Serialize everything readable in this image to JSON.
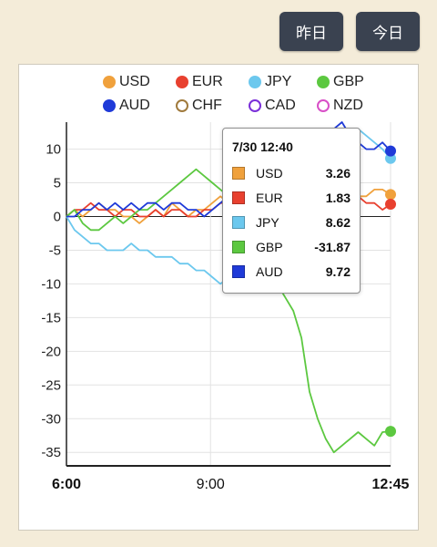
{
  "header": {
    "yesterday_label": "昨日",
    "today_label": "今日"
  },
  "tooltip": {
    "title": "7/30 12:40",
    "rows": [
      {
        "name": "USD",
        "value": "3.26",
        "color": "#f0a13c"
      },
      {
        "name": "EUR",
        "value": "1.83",
        "color": "#e8402f"
      },
      {
        "name": "JPY",
        "value": "8.62",
        "color": "#6cc8ee"
      },
      {
        "name": "GBP",
        "value": "-31.87",
        "color": "#5cc840"
      },
      {
        "name": "AUD",
        "value": "9.72",
        "color": "#1f3ad8"
      }
    ]
  },
  "chart_data": {
    "type": "line",
    "x_ticks": [
      "6:00",
      "9:00",
      "12:45"
    ],
    "x_range": [
      "6:00",
      "12:45"
    ],
    "ylim": [
      -37,
      14
    ],
    "y_ticks": [
      10,
      5,
      0,
      -5,
      -10,
      -15,
      -20,
      -25,
      -30,
      -35
    ],
    "grid": true,
    "legend_position": "top",
    "series": [
      {
        "name": "USD",
        "color": "#f0a13c",
        "filled": true,
        "last": 3.26,
        "values": [
          0,
          1,
          0,
          1,
          2,
          1,
          1,
          0,
          0,
          -1,
          0,
          1,
          0,
          2,
          1,
          0,
          1,
          1,
          2,
          3,
          2,
          3,
          2,
          3,
          4,
          3,
          3,
          4,
          4,
          3,
          2,
          3,
          4,
          3,
          3,
          4,
          3,
          3,
          4,
          4,
          3.26
        ]
      },
      {
        "name": "EUR",
        "color": "#e8402f",
        "filled": true,
        "last": 1.83,
        "values": [
          0,
          1,
          1,
          2,
          1,
          1,
          0,
          1,
          1,
          0,
          0,
          1,
          0,
          1,
          1,
          0,
          0,
          1,
          1,
          2,
          2,
          3,
          2,
          2,
          1,
          2,
          2,
          1,
          1,
          2,
          1,
          2,
          2,
          3,
          2,
          2,
          3,
          2,
          2,
          1,
          1.83
        ]
      },
      {
        "name": "JPY",
        "color": "#6cc8ee",
        "filled": true,
        "last": 8.62,
        "values": [
          0,
          -2,
          -3,
          -4,
          -4,
          -5,
          -5,
          -5,
          -4,
          -5,
          -5,
          -6,
          -6,
          -6,
          -7,
          -7,
          -8,
          -8,
          -9,
          -10,
          -9,
          -10,
          -10,
          -11,
          -11,
          -11,
          -10,
          -11,
          -10,
          -7,
          -4,
          -1,
          3,
          6,
          10,
          12,
          13,
          12,
          11,
          10,
          8.62
        ]
      },
      {
        "name": "GBP",
        "color": "#5cc840",
        "filled": true,
        "last": -31.87,
        "values": [
          0,
          1,
          -1,
          -2,
          -2,
          -1,
          0,
          -1,
          0,
          1,
          1,
          2,
          3,
          4,
          5,
          6,
          7,
          6,
          5,
          4,
          3,
          2,
          1,
          0,
          -3,
          -6,
          -10,
          -12,
          -14,
          -18,
          -26,
          -30,
          -33,
          -35,
          -34,
          -33,
          -32,
          -33,
          -34,
          -32,
          -31.87
        ]
      },
      {
        "name": "AUD",
        "color": "#1f3ad8",
        "filled": true,
        "last": 9.72,
        "values": [
          0,
          0,
          1,
          1,
          2,
          1,
          2,
          1,
          2,
          1,
          2,
          2,
          1,
          2,
          2,
          1,
          1,
          0,
          1,
          2,
          3,
          4,
          4,
          5,
          6,
          7,
          8,
          9,
          10,
          10,
          11,
          12,
          12,
          13,
          14,
          12,
          11,
          10,
          10,
          11,
          9.72
        ]
      },
      {
        "name": "CHF",
        "color": "#a07a3c",
        "filled": false,
        "values": []
      },
      {
        "name": "CAD",
        "color": "#7a2fd8",
        "filled": false,
        "values": []
      },
      {
        "name": "NZD",
        "color": "#d84fc7",
        "filled": false,
        "values": []
      }
    ]
  }
}
